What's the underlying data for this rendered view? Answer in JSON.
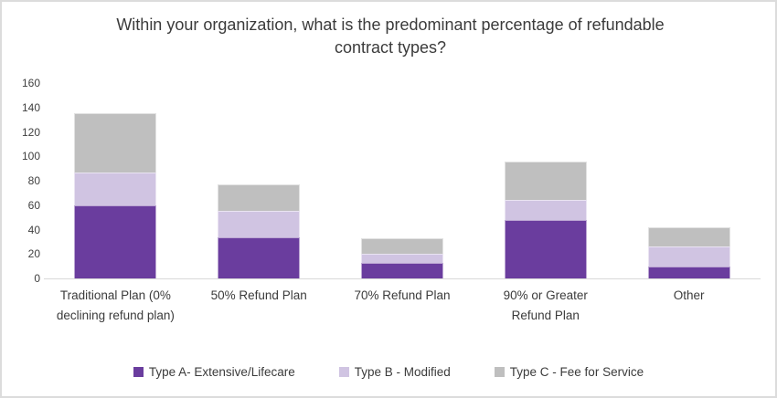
{
  "title": "Within your organization, what is the predominant percentage of refundable contract types?",
  "colors": {
    "type_a": "#6A3D9E",
    "type_b": "#D0C4E2",
    "type_c": "#BFBFBF",
    "axis_line": "#D9D9D9",
    "text": "#3B3B3B"
  },
  "chart_data": {
    "type": "bar",
    "stacked": true,
    "title": "Within your organization, what is the predominant percentage of refundable contract types?",
    "categories": [
      "Traditional Plan (0% declining refund plan)",
      "50% Refund Plan",
      "70% Refund Plan",
      "90% or Greater Refund Plan",
      "Other"
    ],
    "series": [
      {
        "name": "Type A- Extensive/Lifecare",
        "color": "#6A3D9E",
        "values": [
          60,
          34,
          13,
          48,
          10
        ]
      },
      {
        "name": "Type B - Modified",
        "color": "#D0C4E2",
        "values": [
          27,
          21,
          7,
          16,
          16
        ]
      },
      {
        "name": "Type C - Fee for Service",
        "color": "#BFBFBF",
        "values": [
          48,
          22,
          13,
          32,
          16
        ]
      }
    ],
    "totals": [
      135,
      77,
      33,
      96,
      42
    ],
    "xlabel": "",
    "ylabel": "",
    "ylim": [
      0,
      160
    ],
    "yticks": [
      0,
      20,
      40,
      60,
      80,
      100,
      120,
      140,
      160
    ],
    "grid": false,
    "legend_position": "bottom"
  }
}
